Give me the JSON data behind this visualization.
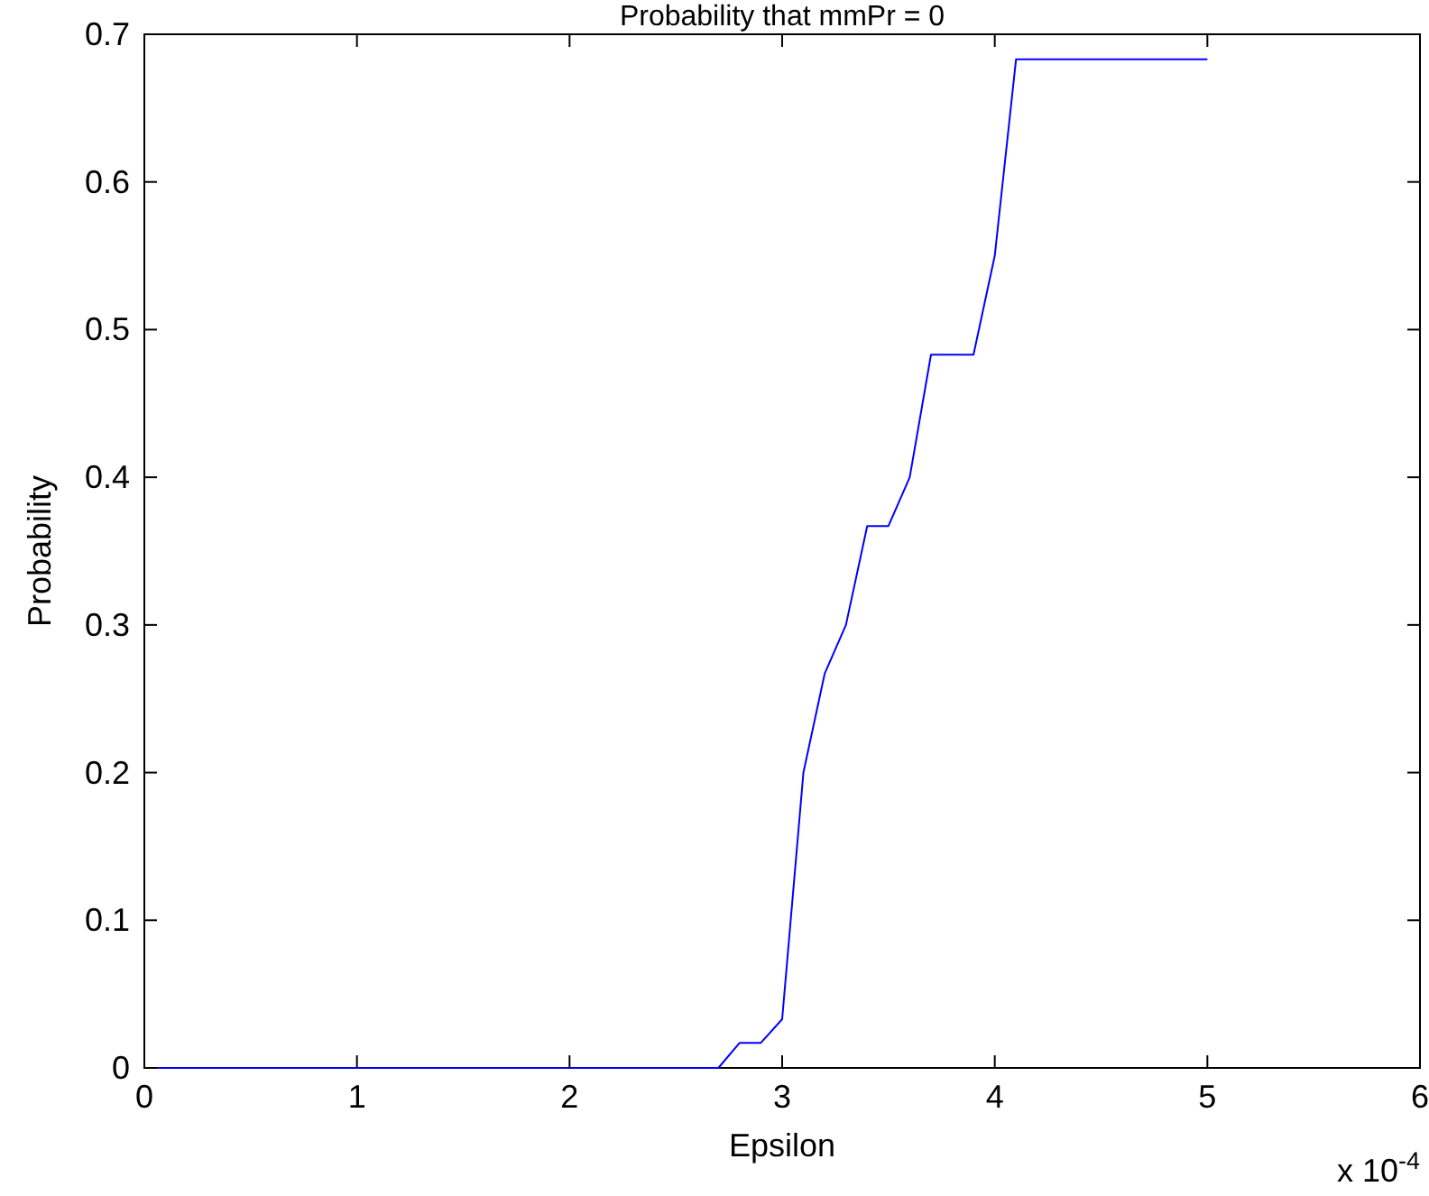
{
  "chart_data": {
    "type": "line",
    "title": "Probability that mmPr = 0",
    "xlabel": "Epsilon",
    "ylabel": "Probability",
    "x": [
      0,
      2.7,
      2.8,
      2.9,
      3,
      3.1,
      3.2,
      3.3,
      3.4,
      3.5,
      3.6,
      3.7,
      3.8,
      3.9,
      4,
      4.1,
      5
    ],
    "series": [
      {
        "color": "#0000ff",
        "values": [
          0,
          0,
          0.017,
          0.017,
          0.033,
          0.2,
          0.267,
          0.3,
          0.367,
          0.367,
          0.4,
          0.483,
          0.483,
          0.483,
          0.55,
          0.683,
          0.683
        ]
      }
    ],
    "xlim": [
      0,
      6
    ],
    "xticks": [
      0,
      1,
      2,
      3,
      4,
      5,
      6
    ],
    "ylim": [
      0,
      0.7
    ],
    "yticks": [
      0,
      0.1,
      0.2,
      0.3,
      0.4,
      0.5,
      0.6,
      0.7
    ],
    "annotations": [
      "x 10$^{-4}$"
    ],
    "grid": false,
    "marker": "none",
    "line_style": "solid"
  }
}
